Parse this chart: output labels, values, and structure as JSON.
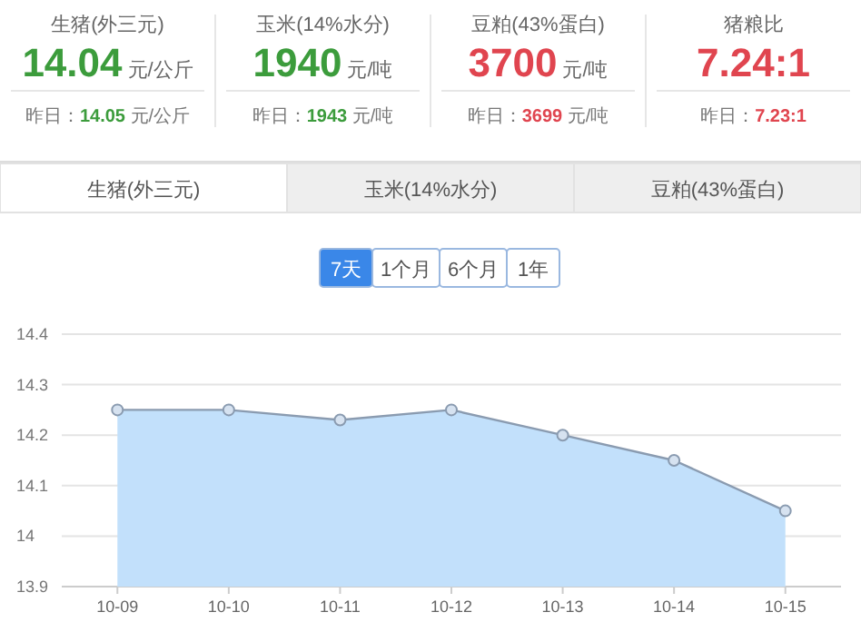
{
  "chart_data": [
    {
      "type": "other",
      "title": "生猪(外三元)",
      "annotations": [
        "14.04",
        "元/公斤",
        "昨日：14.05 元/公斤"
      ],
      "colors": [
        "#3c9c3c"
      ]
    },
    {
      "type": "other",
      "title": "玉米(14%水分)",
      "annotations": [
        "1940",
        "元/吨",
        "昨日：1943 元/吨"
      ],
      "colors": [
        "#3c9c3c"
      ]
    },
    {
      "type": "other",
      "title": "豆粕(43%蛋白)",
      "annotations": [
        "3700",
        "元/吨",
        "昨日：3699 元/吨"
      ],
      "colors": [
        "#e0454f"
      ]
    },
    {
      "type": "other",
      "title": "猪粮比",
      "annotations": [
        "7.24:1",
        "昨日：7.23:1"
      ],
      "colors": [
        "#e0454f"
      ]
    },
    {
      "type": "area",
      "categories": [
        "10-09",
        "10-10",
        "10-11",
        "10-12",
        "10-13",
        "10-14",
        "10-15"
      ],
      "series": [
        {
          "color": "#8a9bb0",
          "values": [
            14.25,
            14.25,
            14.23,
            14.25,
            14.2,
            14.15,
            14.05
          ]
        }
      ],
      "ylim": [
        13.9,
        14.4
      ],
      "yticks": [
        13.9,
        14,
        14.1,
        14.2,
        14.3,
        14.4
      ],
      "grid": "y",
      "marker": "circle",
      "annotations": [
        "生猪(外三元)",
        "玉米(14%水分)",
        "豆粕(43%蛋白)",
        "7天",
        "1个月",
        "6个月",
        "1年"
      ]
    }
  ]
}
